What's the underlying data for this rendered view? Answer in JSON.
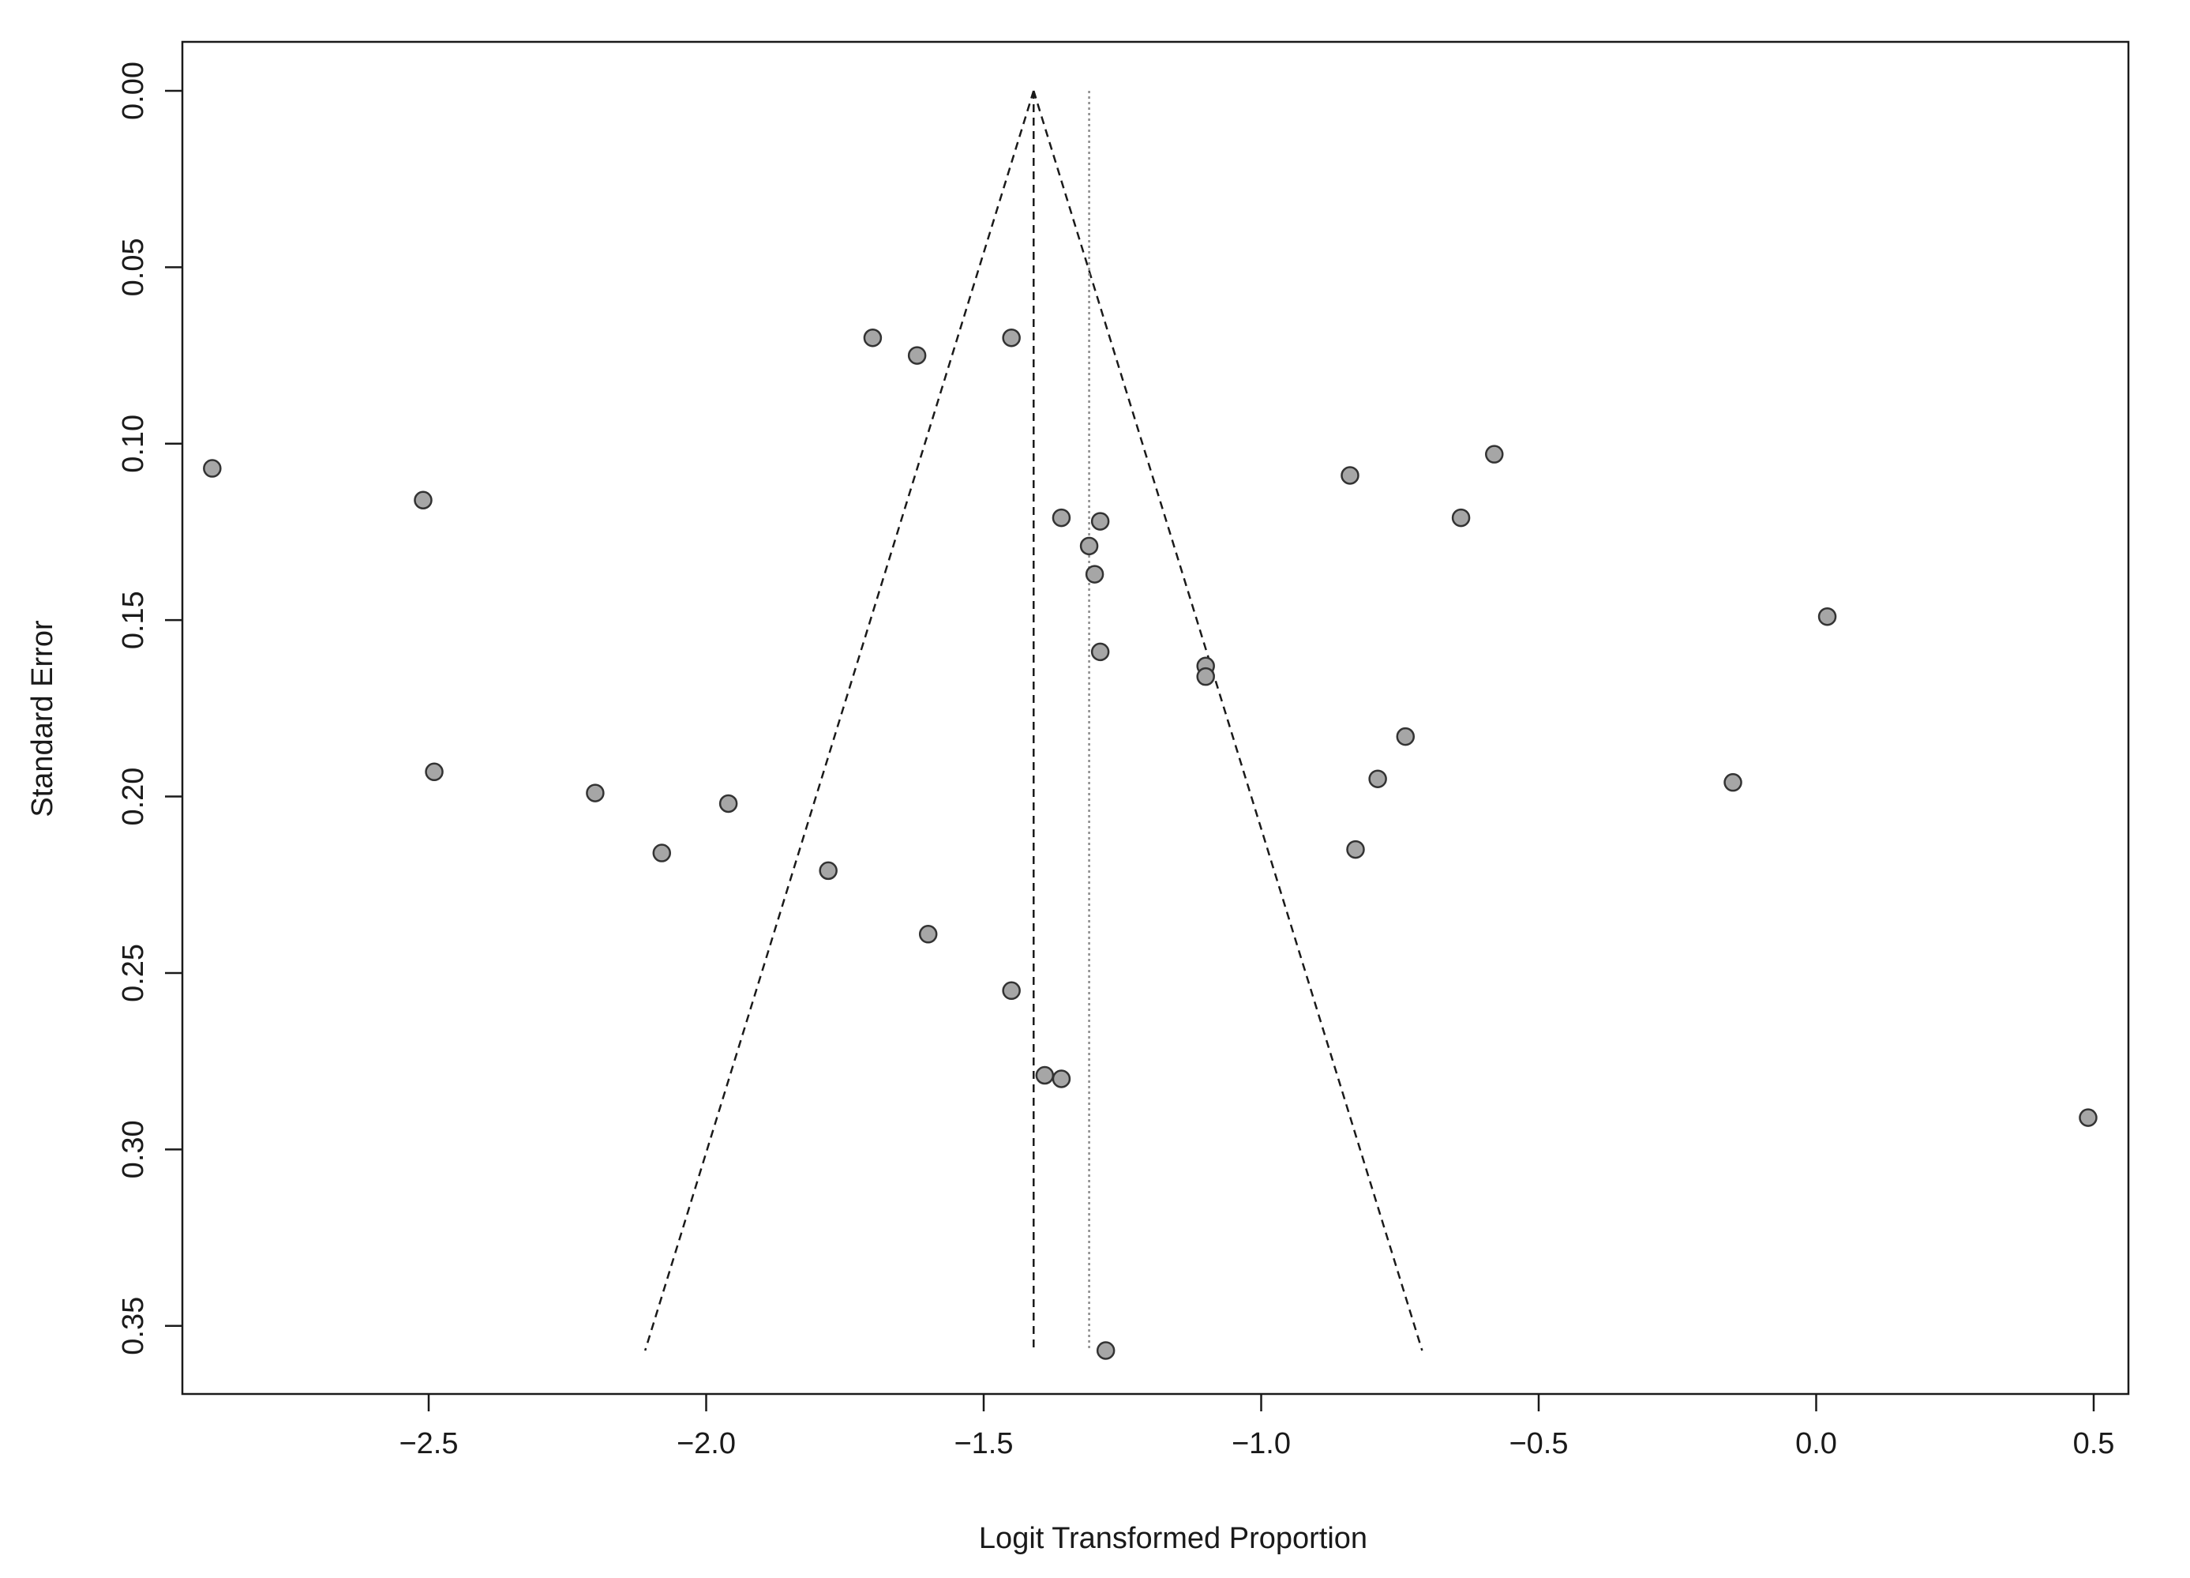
{
  "chart_data": {
    "type": "scatter",
    "subtype": "funnel-plot",
    "title": "",
    "xlabel": "Logit Transformed Proportion",
    "ylabel": "Standard Error",
    "xlim": [
      -2.95,
      0.54
    ],
    "ylim": [
      0.0,
      0.357
    ],
    "y_axis_reversed": true,
    "grid": false,
    "legend": "none",
    "x_ticks": [
      -2.5,
      -2.0,
      -1.5,
      -1.0,
      -0.5,
      0.0,
      0.5
    ],
    "x_tick_labels": [
      "−2.5",
      "−2.0",
      "−1.5",
      "−1.0",
      "−0.5",
      "0.0",
      "0.5"
    ],
    "y_ticks": [
      0.0,
      0.05,
      0.1,
      0.15,
      0.2,
      0.25,
      0.3,
      0.35
    ],
    "y_tick_labels": [
      "0.00",
      "0.05",
      "0.10",
      "0.15",
      "0.20",
      "0.25",
      "0.30",
      "0.35"
    ],
    "pooled_estimate": -1.41,
    "reference_line": -1.31,
    "funnel": {
      "apex": [
        -1.41,
        0.0
      ],
      "left_base": [
        -2.11,
        0.357
      ],
      "right_base": [
        -0.71,
        0.357
      ]
    },
    "points": [
      {
        "x": -2.89,
        "y": 0.107
      },
      {
        "x": -2.51,
        "y": 0.116
      },
      {
        "x": -2.49,
        "y": 0.193
      },
      {
        "x": -2.2,
        "y": 0.199
      },
      {
        "x": -2.08,
        "y": 0.216
      },
      {
        "x": -1.96,
        "y": 0.202
      },
      {
        "x": -1.78,
        "y": 0.221
      },
      {
        "x": -1.7,
        "y": 0.07
      },
      {
        "x": -1.62,
        "y": 0.075
      },
      {
        "x": -1.6,
        "y": 0.239
      },
      {
        "x": -1.45,
        "y": 0.07
      },
      {
        "x": -1.45,
        "y": 0.255
      },
      {
        "x": -1.39,
        "y": 0.279
      },
      {
        "x": -1.36,
        "y": 0.121
      },
      {
        "x": -1.36,
        "y": 0.28
      },
      {
        "x": -1.31,
        "y": 0.129
      },
      {
        "x": -1.3,
        "y": 0.137
      },
      {
        "x": -1.29,
        "y": 0.122
      },
      {
        "x": -1.29,
        "y": 0.159
      },
      {
        "x": -1.28,
        "y": 0.357
      },
      {
        "x": -1.1,
        "y": 0.163
      },
      {
        "x": -1.1,
        "y": 0.166
      },
      {
        "x": -0.84,
        "y": 0.109
      },
      {
        "x": -0.83,
        "y": 0.215
      },
      {
        "x": -0.79,
        "y": 0.195
      },
      {
        "x": -0.74,
        "y": 0.183
      },
      {
        "x": -0.64,
        "y": 0.121
      },
      {
        "x": -0.58,
        "y": 0.103
      },
      {
        "x": -0.15,
        "y": 0.196
      },
      {
        "x": 0.02,
        "y": 0.149
      },
      {
        "x": 0.49,
        "y": 0.291
      }
    ],
    "point_fill": "#a6a6a6",
    "point_stroke": "#333333",
    "line_color": "#1a1a1a",
    "reference_line_color": "#8c8c8c"
  }
}
